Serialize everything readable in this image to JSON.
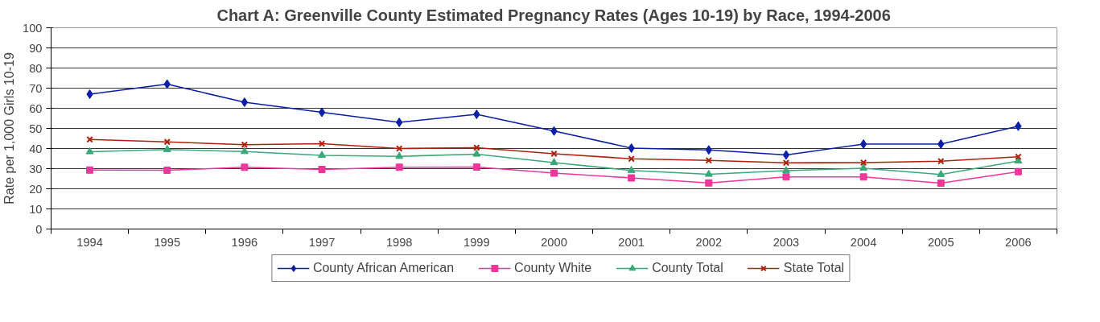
{
  "chart_data": {
    "type": "line",
    "title": "Chart A: Greenville County Estimated Pregnancy Rates (Ages 10-19) by Race, 1994-2006",
    "ylabel": "Rate per 1,000 Girls 10-19",
    "categories": [
      "1994",
      "1995",
      "1996",
      "1997",
      "1998",
      "1999",
      "2000",
      "2001",
      "2002",
      "2003",
      "2004",
      "2005",
      "2006"
    ],
    "series": [
      {
        "name": "County African American",
        "color": "#0a1ea8",
        "marker": "diamond",
        "values": [
          67,
          72,
          63,
          58,
          53,
          57,
          48.7,
          40.2,
          39.3,
          36.8,
          42.2,
          42.2,
          51.1
        ]
      },
      {
        "name": "County White",
        "color": "#f0369a",
        "marker": "square",
        "values": [
          29.3,
          29.2,
          30.7,
          29.6,
          30.7,
          30.8,
          27.8,
          25.4,
          22.9,
          25.9,
          25.9,
          22.8,
          28.5
        ]
      },
      {
        "name": "County Total",
        "color": "#3aa878",
        "marker": "triangle",
        "values": [
          38.4,
          39.5,
          38.5,
          36.6,
          36.1,
          37.2,
          33,
          29.1,
          27.2,
          29,
          30.2,
          27.1,
          33.8
        ]
      },
      {
        "name": "State Total",
        "color": "#b0200a",
        "marker": "cross",
        "values": [
          44.5,
          43.3,
          41.9,
          42.4,
          40,
          40.4,
          37.4,
          34.9,
          34.1,
          32.9,
          33,
          33.7,
          35.9
        ]
      }
    ],
    "ylim": [
      0,
      100
    ],
    "yticks": [
      0,
      10,
      20,
      30,
      40,
      50,
      60,
      70,
      80,
      90,
      100
    ],
    "grid": "y",
    "legend": "bottom",
    "line_style": "solid"
  }
}
